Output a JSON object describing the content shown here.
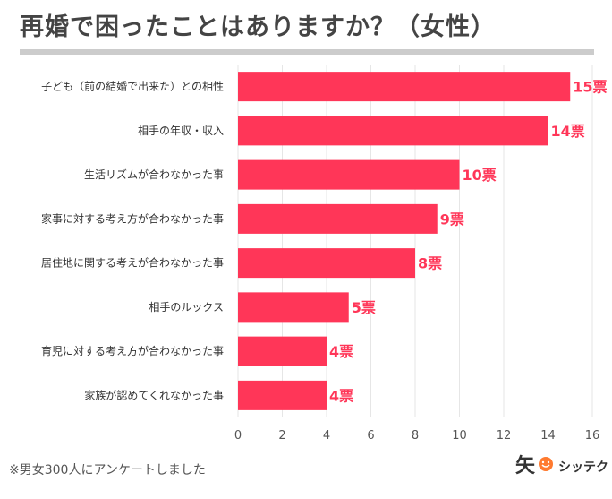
{
  "title": "再婚で困ったことはありますか？（女性）",
  "footnote": "※男女300人にアンケートしました",
  "logo": {
    "mark": "矢",
    "text": "シッテク",
    "icon": "smiley-face-icon"
  },
  "colors": {
    "bar": "#ff3658",
    "value_label": "#ff3658",
    "grid": "#e6e6e6",
    "title_rule": "#cccccc"
  },
  "chart_data": {
    "type": "bar",
    "orientation": "horizontal",
    "title": "再婚で困ったことはありますか？（女性）",
    "categories": [
      "子ども（前の結婚で出来た）との相性",
      "相手の年収・収入",
      "生活リズムが合わなかった事",
      "家事に対する考え方が合わなかった事",
      "居住地に関する考えが合わなかった事",
      "相手のルックス",
      "育児に対する考え方が合わなかった事",
      "家族が認めてくれなかった事"
    ],
    "values": [
      15,
      14,
      10,
      9,
      8,
      5,
      4,
      4
    ],
    "value_labels": [
      "15票",
      "14票",
      "10票",
      "9票",
      "8票",
      "5票",
      "4票",
      "4票"
    ],
    "xlim": [
      0,
      16
    ],
    "xticks": [
      0,
      2,
      4,
      6,
      8,
      10,
      12,
      14,
      16
    ],
    "xlabel": "",
    "ylabel": "",
    "grid": true
  }
}
